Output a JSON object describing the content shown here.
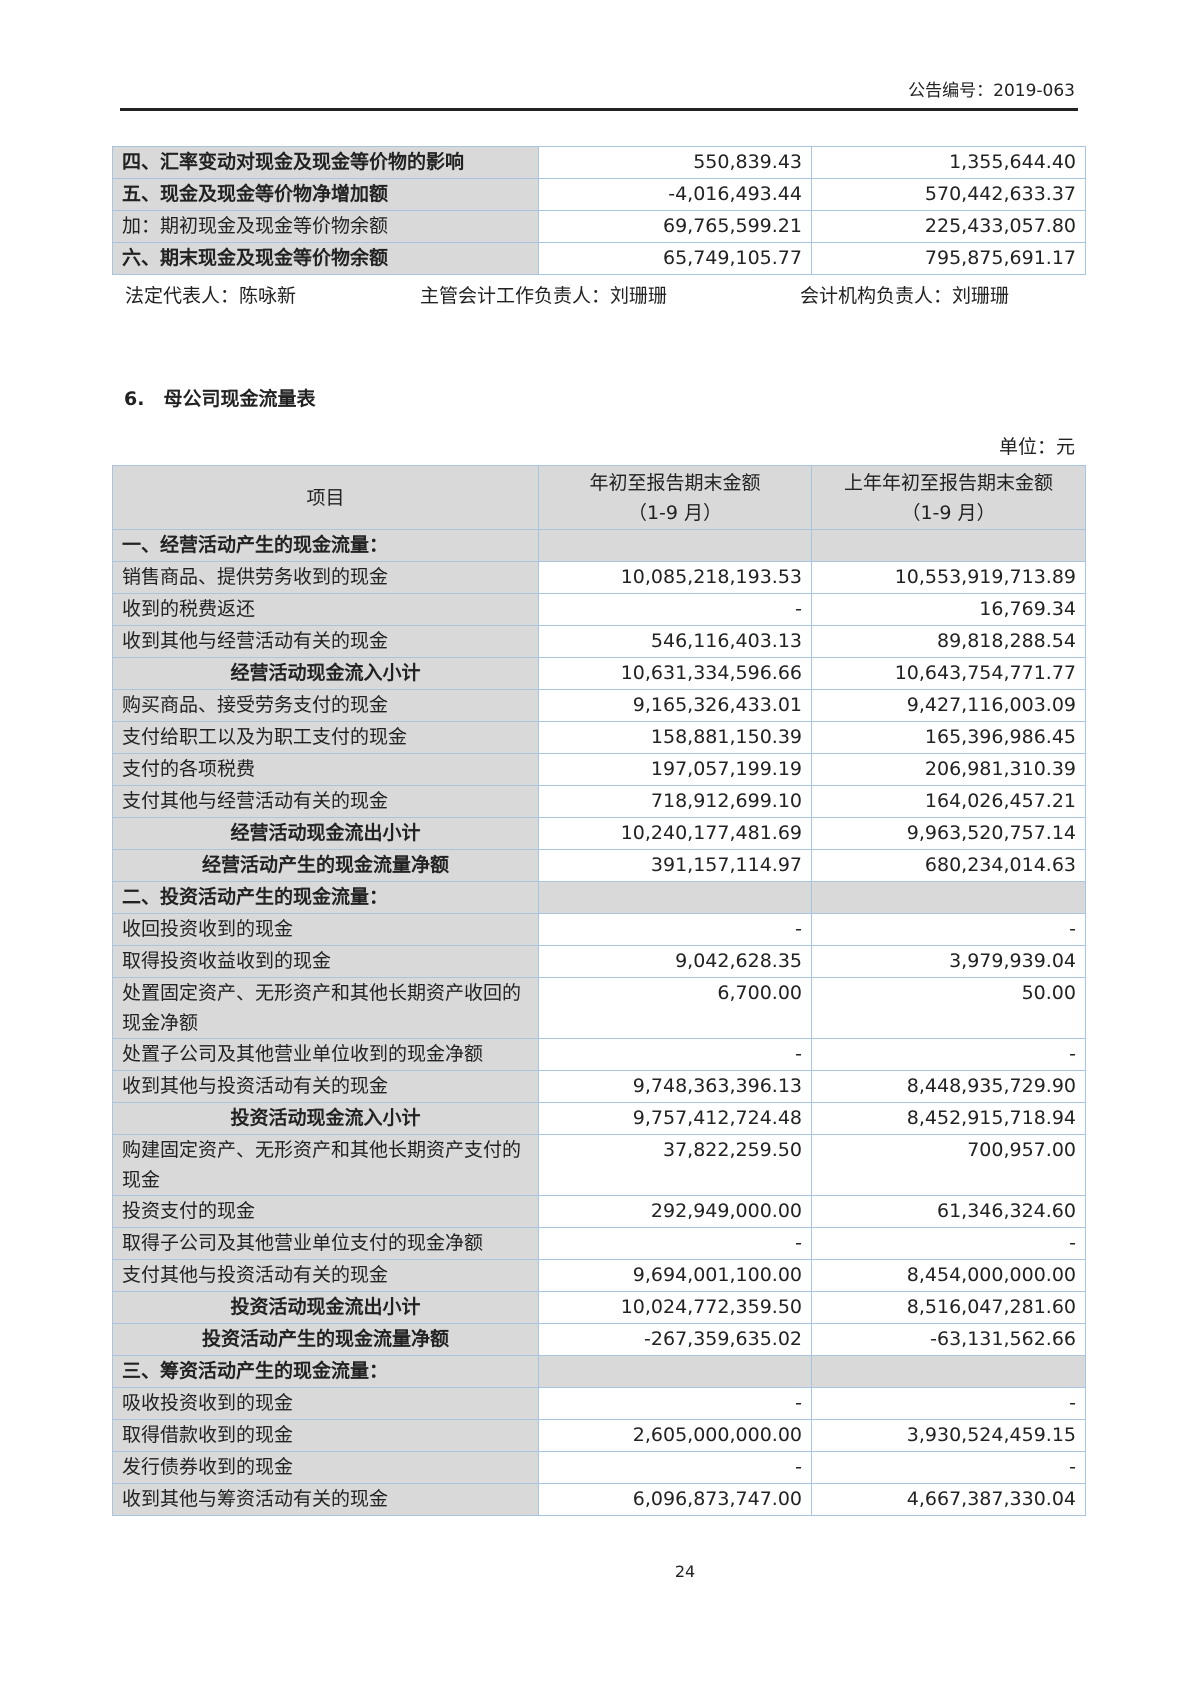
{
  "header": {
    "announcement_no": "公告编号：2019-063"
  },
  "top_table": {
    "rows": [
      {
        "type": "bold",
        "label": "四、汇率变动对现金及现金等价物的影响",
        "current": "550,839.43",
        "previous": "1,355,644.40"
      },
      {
        "type": "bold",
        "label": "五、现金及现金等价物净增加额",
        "current": "-4,016,493.44",
        "previous": "570,442,633.37"
      },
      {
        "type": "normal",
        "label": "加：期初现金及现金等价物余额",
        "current": "69,765,599.21",
        "previous": "225,433,057.80"
      },
      {
        "type": "bold",
        "label": "六、期末现金及现金等价物余额",
        "current": "65,749,105.77",
        "previous": "795,875,691.17"
      }
    ]
  },
  "signatures": {
    "legal_rep": "法定代表人：陈咏新",
    "accounting_head": "主管会计工作负责人：刘珊珊",
    "accounting_org_head": "会计机构负责人：刘珊珊"
  },
  "section": {
    "title": "6.　母公司现金流量表",
    "unit": "单位：元"
  },
  "main_table": {
    "headers": {
      "item": "项目",
      "current_l1": "年初至报告期末金额",
      "current_l2": "（1-9 月）",
      "previous_l1": "上年年初至报告期末金额",
      "previous_l2": "（1-9 月）"
    },
    "rows": [
      {
        "type": "sec",
        "label": "一、经营活动产生的现金流量：",
        "current": "",
        "previous": ""
      },
      {
        "type": "normal",
        "label": "销售商品、提供劳务收到的现金",
        "current": "10,085,218,193.53",
        "previous": "10,553,919,713.89"
      },
      {
        "type": "normal",
        "label": "收到的税费返还",
        "current": "-",
        "previous": "16,769.34"
      },
      {
        "type": "normal",
        "label": "收到其他与经营活动有关的现金",
        "current": "546,116,403.13",
        "previous": "89,818,288.54"
      },
      {
        "type": "sub",
        "label": "经营活动现金流入小计",
        "current": "10,631,334,596.66",
        "previous": "10,643,754,771.77"
      },
      {
        "type": "normal",
        "label": "购买商品、接受劳务支付的现金",
        "current": "9,165,326,433.01",
        "previous": "9,427,116,003.09"
      },
      {
        "type": "normal",
        "label": "支付给职工以及为职工支付的现金",
        "current": "158,881,150.39",
        "previous": "165,396,986.45"
      },
      {
        "type": "normal",
        "label": "支付的各项税费",
        "current": "197,057,199.19",
        "previous": "206,981,310.39"
      },
      {
        "type": "normal",
        "label": "支付其他与经营活动有关的现金",
        "current": "718,912,699.10",
        "previous": "164,026,457.21"
      },
      {
        "type": "sub",
        "label": "经营活动现金流出小计",
        "current": "10,240,177,481.69",
        "previous": "9,963,520,757.14"
      },
      {
        "type": "sub",
        "label": "经营活动产生的现金流量净额",
        "current": "391,157,114.97",
        "previous": "680,234,014.63"
      },
      {
        "type": "sec",
        "label": "二、投资活动产生的现金流量：",
        "current": "",
        "previous": ""
      },
      {
        "type": "normal",
        "label": "收回投资收到的现金",
        "current": "-",
        "previous": "-"
      },
      {
        "type": "normal",
        "label": "取得投资收益收到的现金",
        "current": "9,042,628.35",
        "previous": "3,979,939.04"
      },
      {
        "type": "normal",
        "label": "处置固定资产、无形资产和其他长期资产收回的现金净额",
        "current": "6,700.00",
        "previous": "50.00"
      },
      {
        "type": "normal",
        "label": "处置子公司及其他营业单位收到的现金净额",
        "current": "-",
        "previous": "-"
      },
      {
        "type": "normal",
        "label": "收到其他与投资活动有关的现金",
        "current": "9,748,363,396.13",
        "previous": "8,448,935,729.90"
      },
      {
        "type": "sub",
        "label": "投资活动现金流入小计",
        "current": "9,757,412,724.48",
        "previous": "8,452,915,718.94"
      },
      {
        "type": "normal",
        "label": "购建固定资产、无形资产和其他长期资产支付的现金",
        "current": "37,822,259.50",
        "previous": "700,957.00"
      },
      {
        "type": "normal",
        "label": "投资支付的现金",
        "current": "292,949,000.00",
        "previous": "61,346,324.60"
      },
      {
        "type": "normal",
        "label": "取得子公司及其他营业单位支付的现金净额",
        "current": "-",
        "previous": "-"
      },
      {
        "type": "normal",
        "label": "支付其他与投资活动有关的现金",
        "current": "9,694,001,100.00",
        "previous": "8,454,000,000.00"
      },
      {
        "type": "sub",
        "label": "投资活动现金流出小计",
        "current": "10,024,772,359.50",
        "previous": "8,516,047,281.60"
      },
      {
        "type": "sub",
        "label": "投资活动产生的现金流量净额",
        "current": "-267,359,635.02",
        "previous": "-63,131,562.66"
      },
      {
        "type": "sec",
        "label": "三、筹资活动产生的现金流量：",
        "current": "",
        "previous": ""
      },
      {
        "type": "normal",
        "label": "吸收投资收到的现金",
        "current": "-",
        "previous": "-"
      },
      {
        "type": "normal",
        "label": "取得借款收到的现金",
        "current": "2,605,000,000.00",
        "previous": "3,930,524,459.15"
      },
      {
        "type": "normal",
        "label": "发行债券收到的现金",
        "current": "-",
        "previous": "-"
      },
      {
        "type": "normal",
        "label": "收到其他与筹资活动有关的现金",
        "current": "6,096,873,747.00",
        "previous": "4,667,387,330.04"
      }
    ]
  },
  "footer": {
    "page_number": "24"
  }
}
